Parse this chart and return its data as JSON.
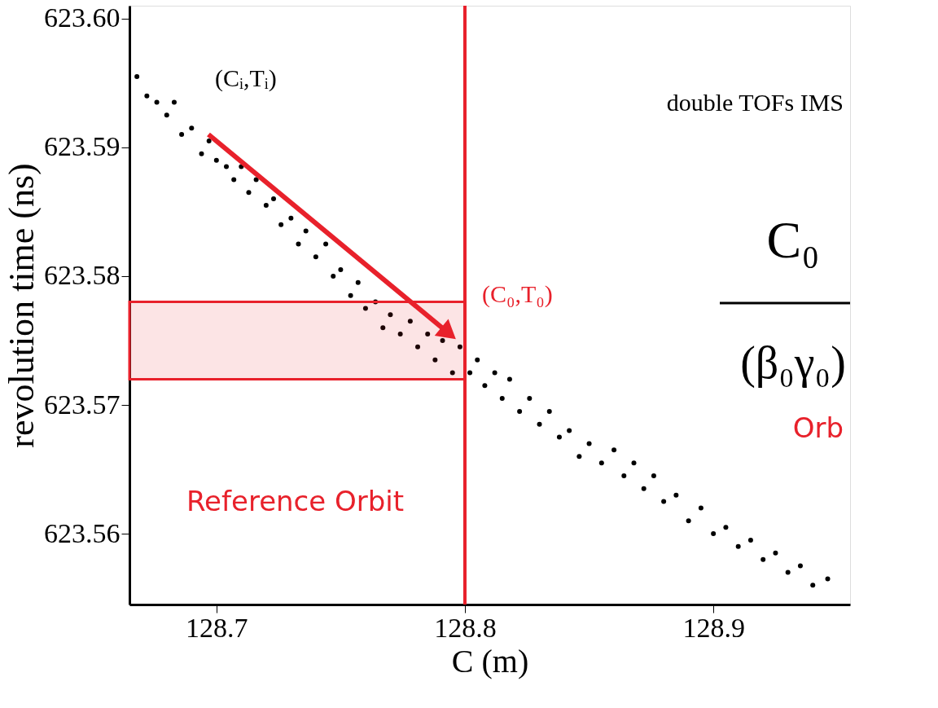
{
  "chart_data": {
    "type": "scatter",
    "xlabel": "C (m)",
    "ylabel": "revolution time (ns)",
    "xlim": [
      128.665,
      128.955
    ],
    "ylim": [
      623.5545,
      623.601
    ],
    "xticks": [
      128.7,
      128.8,
      128.9
    ],
    "yticks": [
      623.56,
      623.57,
      623.58,
      623.59,
      {
        "value": 623.6,
        "label": "623.60"
      }
    ],
    "marker": "circle",
    "series": [
      {
        "color": "#000000",
        "x": [
          128.668,
          128.672,
          128.676,
          128.68,
          128.683,
          128.686,
          128.69,
          128.694,
          128.697,
          128.7,
          128.704,
          128.707,
          128.71,
          128.713,
          128.716,
          128.72,
          128.723,
          128.726,
          128.73,
          128.733,
          128.736,
          128.74,
          128.744,
          128.747,
          128.75,
          128.754,
          128.757,
          128.76,
          128.764,
          128.767,
          128.77,
          128.774,
          128.778,
          128.781,
          128.785,
          128.788,
          128.791,
          128.795,
          128.798,
          128.802,
          128.805,
          128.808,
          128.812,
          128.815,
          128.818,
          128.822,
          128.826,
          128.83,
          128.834,
          128.838,
          128.842,
          128.846,
          128.85,
          128.855,
          128.86,
          128.864,
          128.868,
          128.872,
          128.876,
          128.88,
          128.885,
          128.89,
          128.895,
          128.9,
          128.905,
          128.91,
          128.915,
          128.92,
          128.925,
          128.93,
          128.935,
          128.94,
          128.946
        ],
        "values": [
          623.5955,
          623.594,
          623.5935,
          623.5925,
          623.5935,
          623.591,
          623.5915,
          623.5895,
          623.5905,
          623.589,
          623.5885,
          623.5875,
          623.5885,
          623.5865,
          623.5875,
          623.5855,
          623.586,
          623.584,
          623.5845,
          623.5825,
          623.5835,
          623.5815,
          623.5825,
          623.58,
          623.5805,
          623.5785,
          623.5795,
          623.5775,
          623.578,
          623.576,
          623.577,
          623.5755,
          623.5765,
          623.5745,
          623.5755,
          623.5735,
          623.575,
          623.5725,
          623.5745,
          623.5725,
          623.5735,
          623.5715,
          623.5725,
          623.5705,
          623.572,
          623.5695,
          623.5705,
          623.5685,
          623.5695,
          623.5675,
          623.568,
          623.566,
          623.567,
          623.5655,
          623.5665,
          623.5645,
          623.5655,
          623.5635,
          623.5645,
          623.5625,
          623.563,
          623.561,
          623.562,
          623.56,
          623.5605,
          623.559,
          623.5595,
          623.558,
          623.5585,
          623.557,
          623.5575,
          623.556,
          623.5565
        ]
      }
    ],
    "ref_lines": [
      {
        "axis": "x",
        "value": 128.8,
        "color": "#e8212b",
        "line_style": "solid"
      }
    ],
    "bands": [
      {
        "axis": "y",
        "from": 623.572,
        "to": 623.578,
        "color": "#e8212b"
      }
    ],
    "annotations": [
      "(Cᵢ,Tᵢ)",
      "double TOFs IMS",
      "(C₀,T₀)",
      "Reference Orbit",
      "C₀",
      "(β₀γ₀)",
      "Orb"
    ]
  }
}
